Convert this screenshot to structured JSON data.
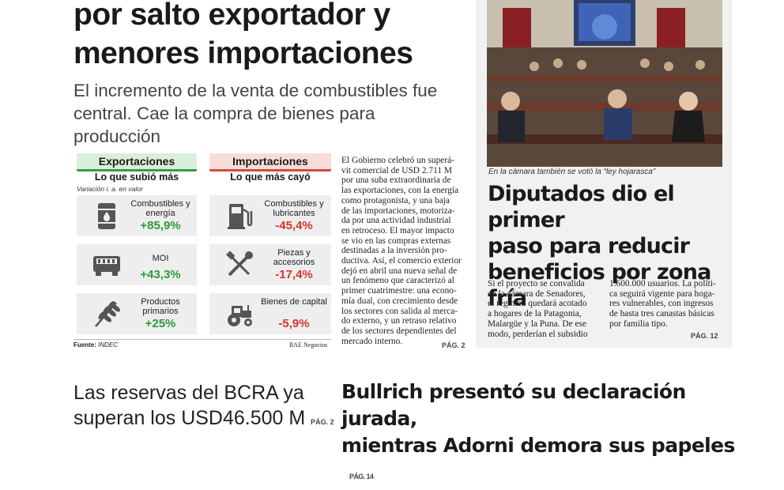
{
  "headline": [
    "por salto exportador y",
    "menores importaciones"
  ],
  "subheadline": [
    "El incremento de la venta de combustibles fue",
    "central. Cae la compra de bienes para producción"
  ],
  "infographic": {
    "exportaciones": {
      "header": "Exportaciones",
      "subtitle": "Lo que subió más",
      "note": "Variación i. a. en valor",
      "items": [
        {
          "label": "Combustibles y energía",
          "value": "+85,9%",
          "icon": "oil-barrel-icon"
        },
        {
          "label": "MOI",
          "value": "+43,3%",
          "icon": "truck-icon"
        },
        {
          "label": "Productos primarios",
          "value": "+25%",
          "icon": "wheat-icon"
        }
      ]
    },
    "importaciones": {
      "header": "Importaciones",
      "subtitle": "Lo que más cayó",
      "items": [
        {
          "label": "Combustibles y lubricantes",
          "value": "-45,4%",
          "icon": "fuel-pump-icon"
        },
        {
          "label": "Piezas y accesorios",
          "value": "-17,4%",
          "icon": "tools-icon"
        },
        {
          "label": "Bienes de capital",
          "value": "-5,9%",
          "icon": "tractor-icon"
        }
      ]
    },
    "source_label": "Fuente:",
    "source_value": "INDEC",
    "credit": "BAE Negocios",
    "color_export": "#2e9a3c",
    "color_import": "#d8342b"
  },
  "main_article": {
    "lines": [
      "El Gobierno celebró un superá-",
      "vit comercial de USD 2.711 M",
      "por una suba extraordinaria de",
      "las exportaciones, con la energía",
      "como protagonista, y una baja",
      "de las importaciones, motoriza-",
      "da por una actividad industrial",
      "en retroceso. El mayor impacto",
      "se vio en las compras externas",
      "destinadas a la inversión pro-",
      "ductiva. Así, el comercio exterior",
      "dejó en abril una nueva señal de",
      "un fenómeno que caracterizó al",
      "primer cuatrimestre: una econo-",
      "mía dual, con crecimiento desde",
      "los sectores con salida al merca-",
      "do externo, y un retraso relativo",
      "de los sectores dependientes del",
      "mercado interno."
    ],
    "page_ref": "PÁG. 2"
  },
  "side_story": {
    "caption": "En la cámara también se votó la “ley hojarasca”",
    "headline": [
      "Diputados dio el primer",
      "paso para reducir",
      "beneficios por zona fría"
    ],
    "col1": [
      "Si el proyecto se convalida",
      "en la cámara de Senadores,",
      "el régimen quedará acotado",
      "a hogares de la Patagonia,",
      "Malargüe y la Puna. De ese",
      "modo, perderían el subsidio"
    ],
    "col2": [
      "1.600.000 usuarios. La políti-",
      "ca seguirá vigente para hoga-",
      "res vulnerables, con ingresos",
      "de hasta tres canastas básicas",
      "por familia tipo."
    ],
    "page_ref": "PÁG. 12"
  },
  "bottom_left": {
    "lines": [
      "Las reservas del BCRA ya",
      "superan los USD46.500 M"
    ],
    "page_ref": "PÁG. 2"
  },
  "bottom_right": {
    "lines": [
      "Bullrich presentó su declaración jurada,",
      "mientras Adorni demora sus papeles"
    ],
    "page_ref": "PÁG. 14"
  }
}
